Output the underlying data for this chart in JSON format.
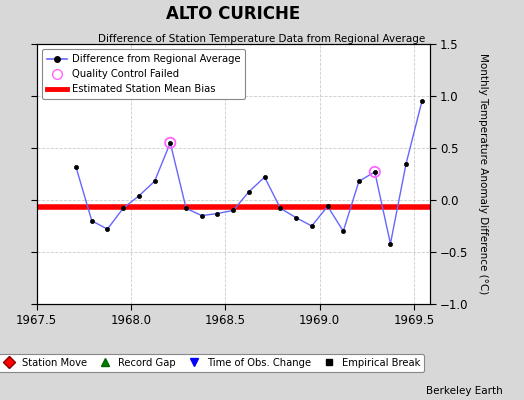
{
  "title": "ALTO CURICHE",
  "subtitle": "Difference of Station Temperature Data from Regional Average",
  "ylabel_right": "Monthly Temperature Anomaly Difference (°C)",
  "watermark": "Berkeley Earth",
  "xlim": [
    1967.5,
    1969.583
  ],
  "ylim": [
    -1.0,
    1.5
  ],
  "yticks": [
    -1.0,
    -0.5,
    0.0,
    0.5,
    1.0,
    1.5
  ],
  "xticks": [
    1967.5,
    1968.0,
    1968.5,
    1969.0,
    1969.5
  ],
  "mean_bias": -0.07,
  "x_data": [
    1967.708,
    1967.792,
    1967.875,
    1967.958,
    1968.042,
    1968.125,
    1968.208,
    1968.292,
    1968.375,
    1968.458,
    1968.542,
    1968.625,
    1968.708,
    1968.792,
    1968.875,
    1968.958,
    1969.042,
    1969.125,
    1969.208,
    1969.292,
    1969.375,
    1969.458,
    1969.542
  ],
  "y_data": [
    0.32,
    -0.2,
    -0.28,
    -0.08,
    0.04,
    0.18,
    0.55,
    -0.08,
    -0.15,
    -0.13,
    -0.1,
    0.08,
    0.22,
    -0.08,
    -0.17,
    -0.25,
    -0.06,
    -0.3,
    0.18,
    0.27,
    -0.42,
    0.35,
    0.95
  ],
  "qc_failed_indices": [
    6,
    19
  ],
  "line_color": "#6666ff",
  "marker_color": "black",
  "qc_color": "#ff66ff",
  "bias_color": "red",
  "background_color": "#d8d8d8",
  "plot_bg_color": "#ffffff",
  "grid_color": "#cccccc",
  "legend1_items": [
    "Difference from Regional Average",
    "Quality Control Failed",
    "Estimated Station Mean Bias"
  ],
  "legend2_items": [
    "Station Move",
    "Record Gap",
    "Time of Obs. Change",
    "Empirical Break"
  ]
}
